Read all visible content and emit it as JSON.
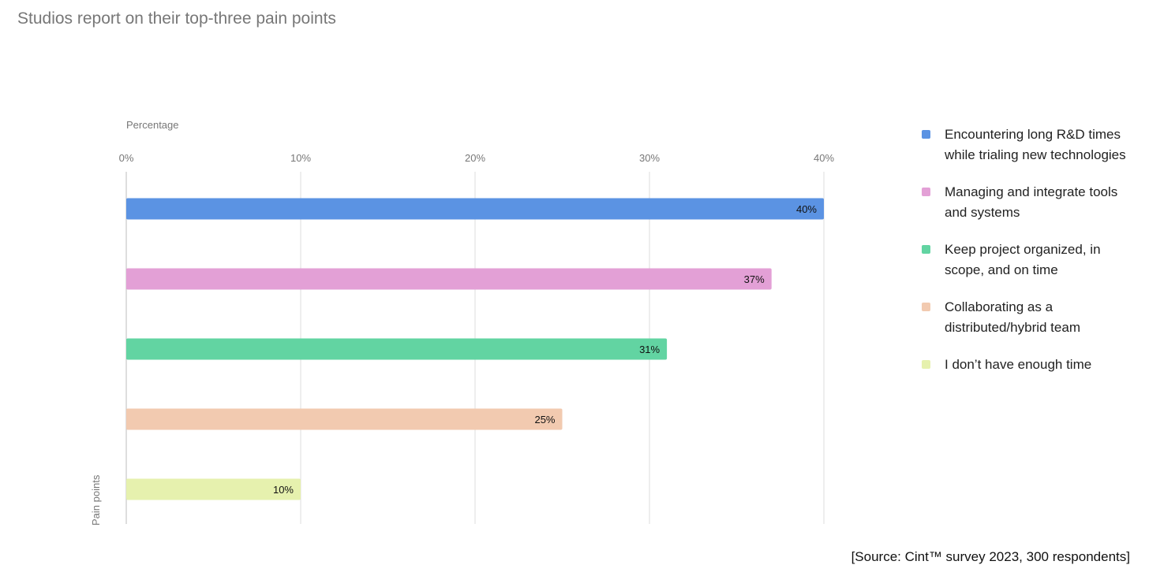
{
  "chart_data": {
    "type": "bar",
    "orientation": "horizontal",
    "title": "Studios report on their top-three pain points",
    "xlabel": "Percentage",
    "ylabel": "Pain points",
    "xlim": [
      0,
      40
    ],
    "xticks": [
      "0%",
      "10%",
      "20%",
      "30%",
      "40%"
    ],
    "grid": true,
    "legend_position": "right",
    "categories": [
      "Encountering long R&D times while trialing new technologies",
      "Managing and integrate tools and systems",
      "Keep project organized, in scope, and on time",
      "Collaborating as a distributed/hybrid team",
      "I don’t have enough time"
    ],
    "values": [
      40,
      37,
      31,
      25,
      10
    ],
    "data_labels": [
      "40%",
      "37%",
      "31%",
      "25%",
      "10%"
    ],
    "colors": [
      "#5b93e3",
      "#e3a0d6",
      "#62d4a2",
      "#f2cab0",
      "#e6f1ae"
    ]
  },
  "source": "[Source: Cint™ survey 2023, 300 respondents]"
}
